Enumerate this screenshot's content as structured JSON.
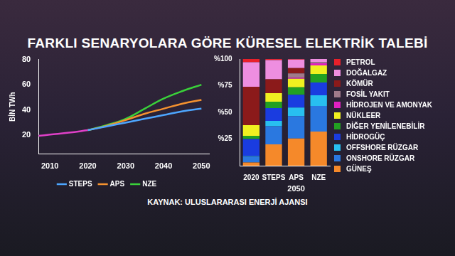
{
  "title": "FARKLI SENARYOLARA GÖRE KÜRESEL ELEKTRİK TALEBİ",
  "source": "KAYNAK: ULUSLARARASI ENERJİ AJANSI",
  "chart_data": [
    {
      "type": "line",
      "ylabel": "BİN TWh",
      "x": [
        2007,
        2010,
        2015,
        2020,
        2025,
        2030,
        2035,
        2040,
        2045,
        2050
      ],
      "xlim": [
        2007,
        2052
      ],
      "xticks": [
        2010,
        2020,
        2030,
        2040,
        2050
      ],
      "ylim": [
        5,
        80
      ],
      "yticks": [
        20,
        40,
        60,
        80
      ],
      "grid": false,
      "legend": "bottom",
      "series": [
        {
          "color": "#e040c8",
          "values": [
            19.5,
            20.5,
            22,
            24,
            null,
            null,
            null,
            null,
            null,
            null
          ]
        },
        {
          "name": "STEPS",
          "color": "#4da6ff",
          "values": [
            null,
            null,
            null,
            24,
            27,
            30,
            33,
            36,
            39,
            41
          ]
        },
        {
          "name": "APS",
          "color": "#f5922f",
          "values": [
            null,
            null,
            null,
            24,
            27.5,
            32,
            37,
            41,
            45,
            48
          ]
        },
        {
          "name": "NZE",
          "color": "#3ad13a",
          "values": [
            null,
            null,
            null,
            24,
            28,
            33,
            41,
            49,
            55,
            60
          ]
        }
      ]
    },
    {
      "type": "bar",
      "stacked": true,
      "categories": [
        "2020",
        "STEPS",
        "APS",
        "NZE"
      ],
      "annotations": [
        {
          "text": "2050",
          "categories": [
            "STEPS",
            "APS",
            "NZE"
          ]
        }
      ],
      "ylim": [
        0,
        100
      ],
      "yticks": [
        {
          "value": 25,
          "label": "%25"
        },
        {
          "value": 50,
          "label": "%50"
        },
        {
          "value": 75,
          "label": "%75"
        },
        {
          "value": 100,
          "label": "%100"
        }
      ],
      "grid": false,
      "legend": "right",
      "series": [
        {
          "name": "PETROL",
          "color": "#e8202a",
          "values": [
            3,
            1,
            0.5,
            0
          ]
        },
        {
          "name": "DOĞALGAZ",
          "color": "#ee8ee0",
          "values": [
            23,
            18,
            8,
            3
          ]
        },
        {
          "name": "KÖMÜR",
          "color": "#8b1a1a",
          "values": [
            36,
            13,
            5,
            0
          ]
        },
        {
          "name": "FOSİL YAKIT",
          "color": "#a07a8a",
          "values": [
            0,
            0,
            4,
            1
          ]
        },
        {
          "name": "HİDROJEN VE AMONYAK",
          "color": "#e020c0",
          "values": [
            0,
            0,
            1,
            2
          ]
        },
        {
          "name": "NÜKLEER",
          "color": "#f0f020",
          "values": [
            10,
            8,
            8,
            8
          ]
        },
        {
          "name": "DİĞER YENİLENEBİLİR",
          "color": "#22a022",
          "values": [
            3,
            6,
            7,
            8
          ]
        },
        {
          "name": "HİDROGÜÇ",
          "color": "#1a3ce0",
          "values": [
            16,
            12,
            12,
            12
          ]
        },
        {
          "name": "OFFSHORE RÜZGAR",
          "color": "#28bff0",
          "values": [
            0.5,
            5,
            8,
            10
          ]
        },
        {
          "name": "ONSHORE RÜZGAR",
          "color": "#2a78e0",
          "values": [
            5.5,
            17,
            21,
            24
          ]
        },
        {
          "name": "GÜNEŞ",
          "color": "#f5892a",
          "values": [
            3,
            20,
            25.5,
            32
          ]
        }
      ]
    }
  ]
}
